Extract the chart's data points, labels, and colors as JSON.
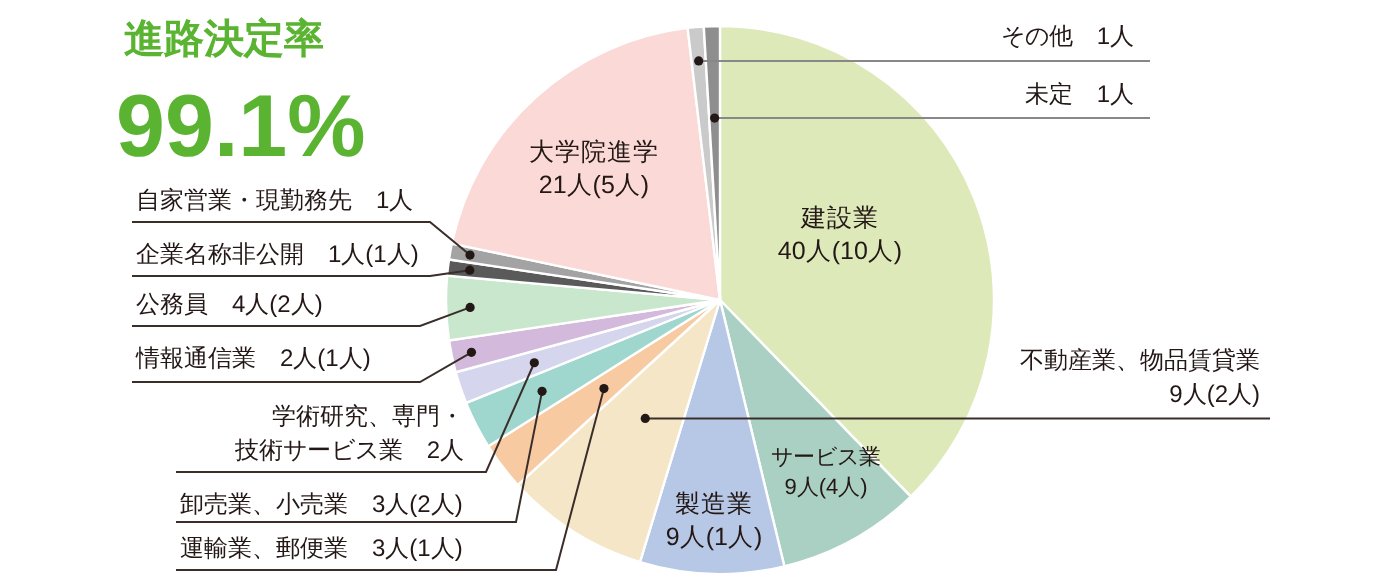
{
  "chart_data": {
    "type": "pie",
    "title": "進路決定率",
    "subtitle": "99.1%",
    "categories": [
      "建設業",
      "サービス業",
      "製造業",
      "不動産業、物品賃貸業",
      "運輸業、郵便業",
      "卸売業、小売業",
      "学術研究、専門・技術サービス業",
      "情報通信業",
      "公務員",
      "企業名称非公開",
      "自家営業・現勤務先",
      "大学院進学",
      "その他",
      "未定"
    ],
    "values": [
      40,
      9,
      9,
      9,
      3,
      3,
      2,
      2,
      4,
      1,
      1,
      21,
      1,
      1
    ],
    "value_labels": [
      "40人(10人)",
      "9人(4人)",
      "9人(1人)",
      "9人(2人)",
      "3人(1人)",
      "3人(2人)",
      "2人",
      "2人(1人)",
      "4人(2人)",
      "1人(1人)",
      "1人",
      "21人(5人)",
      "1人",
      "1人"
    ],
    "colors": [
      "#dde9b9",
      "#a9d0c3",
      "#b7c8e7",
      "#f4e6c6",
      "#f8caa2",
      "#9fd7cf",
      "#d5d5ee",
      "#d3badd",
      "#c9e7cd",
      "#5a5a5a",
      "#a3a3a3",
      "#fad9d7",
      "#cacaca",
      "#8e8e8e"
    ]
  }
}
